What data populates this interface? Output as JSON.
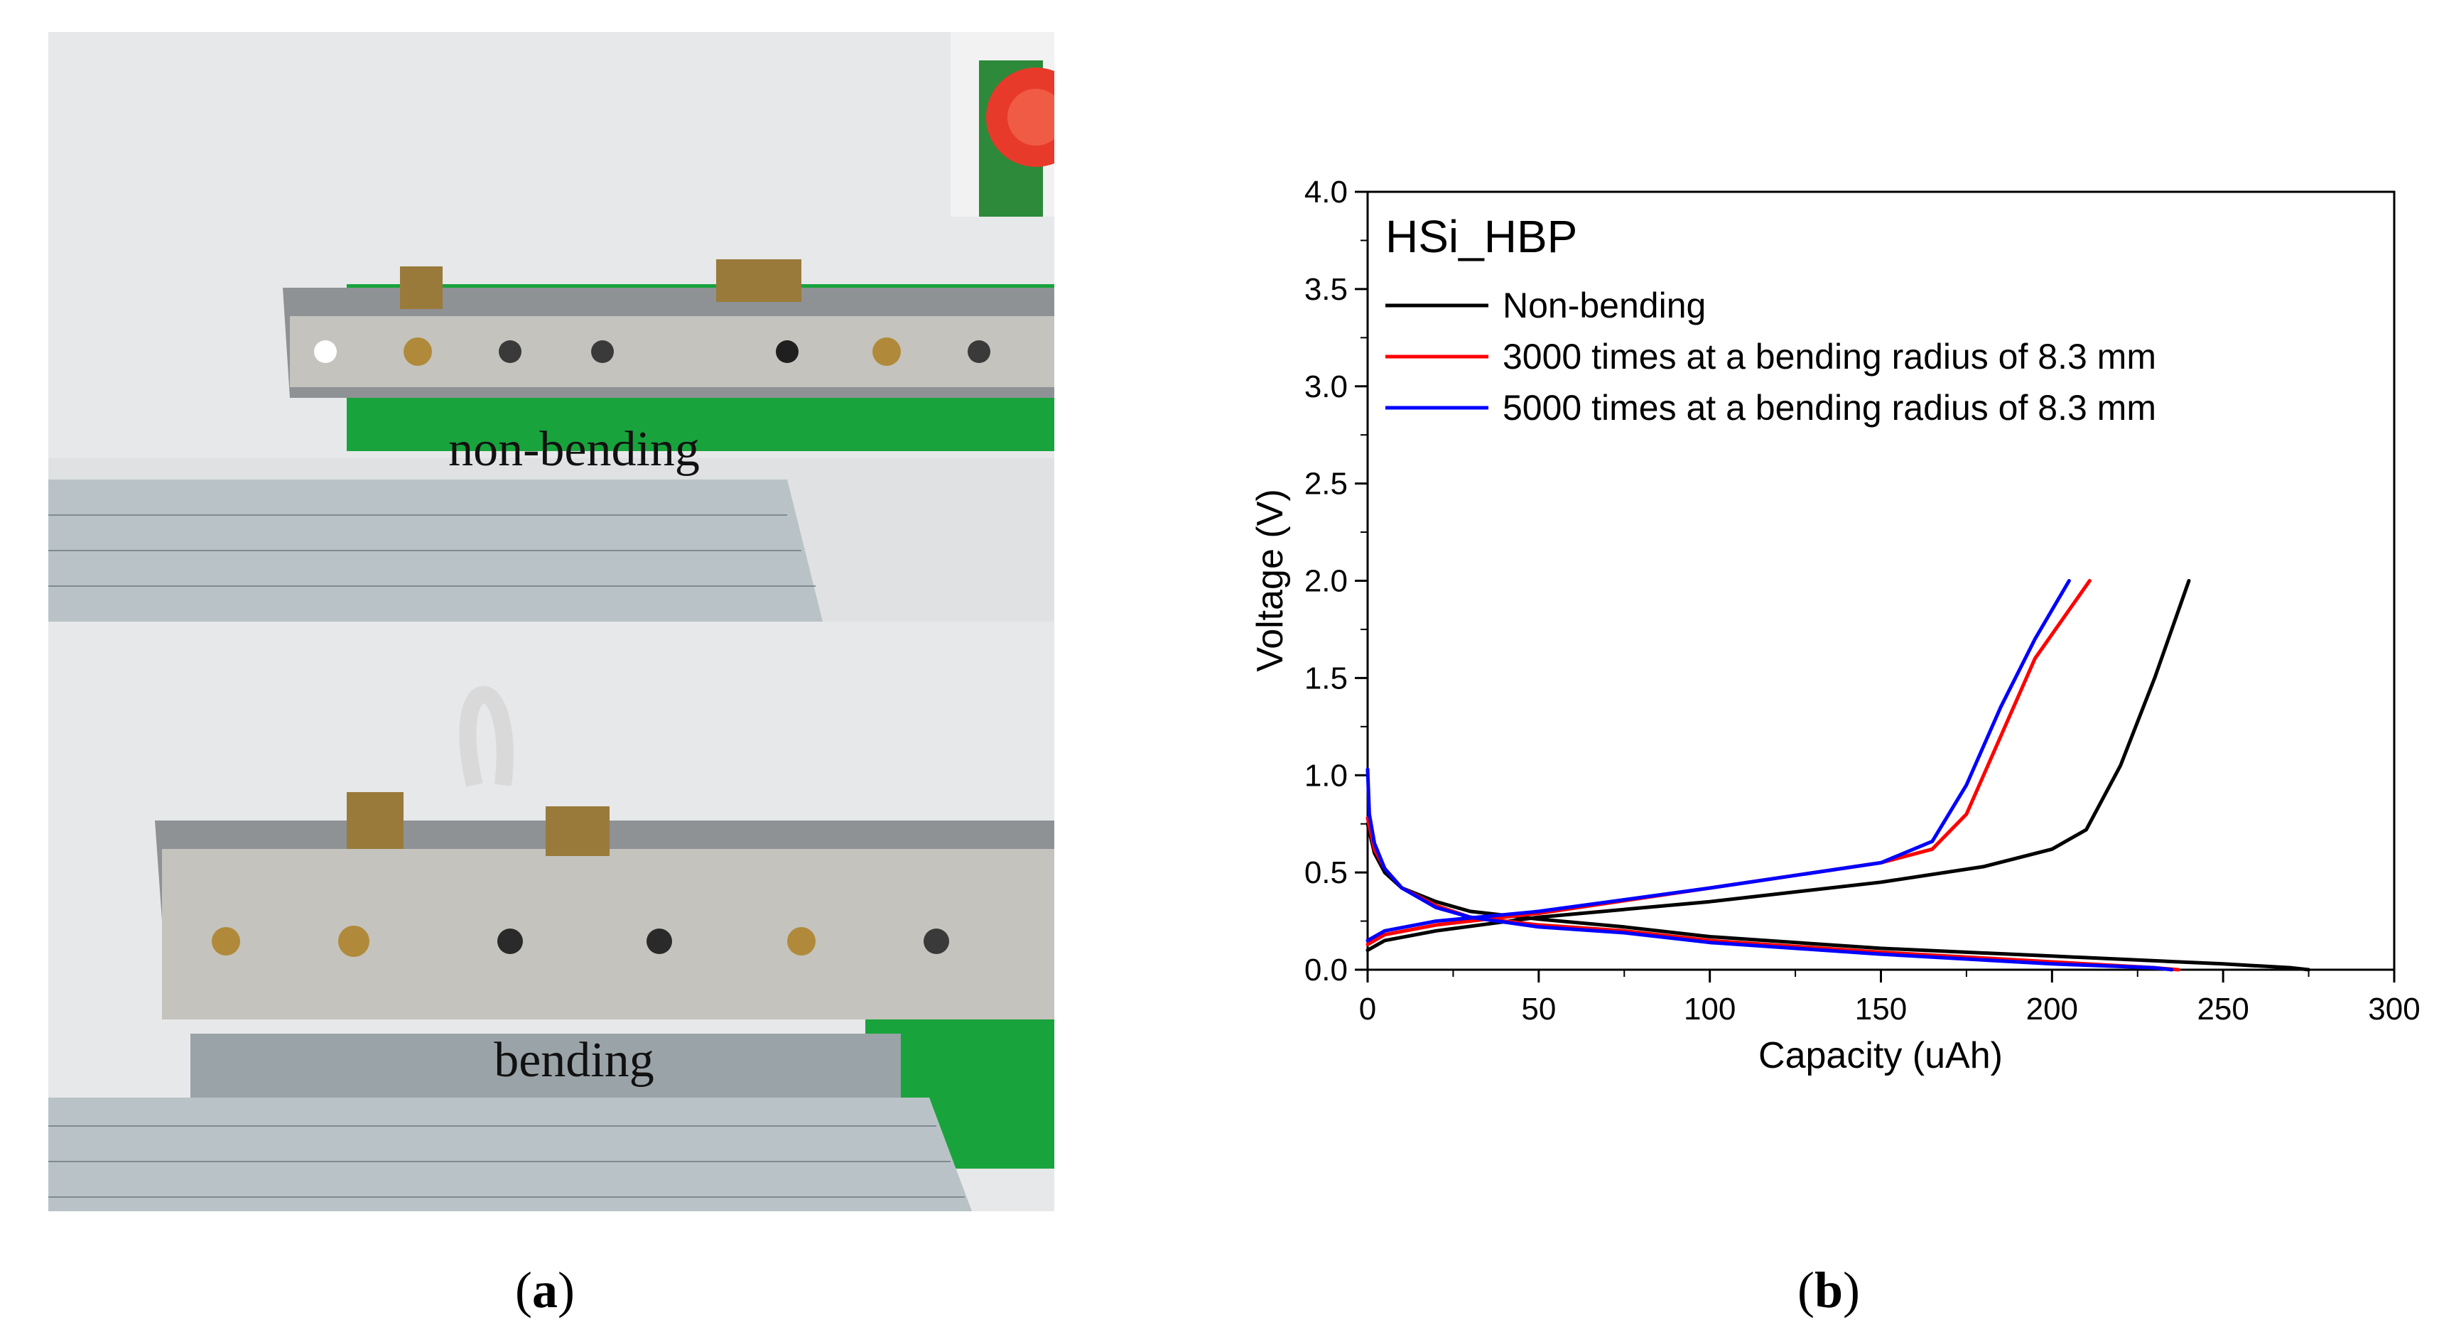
{
  "panel_a": {
    "caption_open": "(",
    "caption_letter": "a",
    "caption_close": ")",
    "top_label": "non-bending",
    "bottom_label": "bending"
  },
  "panel_b": {
    "caption_open": "(",
    "caption_letter": "b",
    "caption_close": ")"
  },
  "chart_data": {
    "type": "line",
    "title": "HSi_HBP",
    "xlabel": "Capacity (uAh)",
    "ylabel": "Voltage (V)",
    "xlim": [
      0,
      300
    ],
    "ylim": [
      0,
      4.0
    ],
    "x_ticks": [
      "0",
      "50",
      "100",
      "150",
      "200",
      "250",
      "300"
    ],
    "y_ticks": [
      "0.0",
      "0.5",
      "1.0",
      "1.5",
      "2.0",
      "2.5",
      "3.0",
      "3.5",
      "4.0"
    ],
    "grid": false,
    "legend_position": "top-left",
    "series": [
      {
        "name": "Non-bending",
        "color": "#000000",
        "discharge": [
          [
            0,
            0.75
          ],
          [
            2,
            0.6
          ],
          [
            5,
            0.5
          ],
          [
            10,
            0.42
          ],
          [
            20,
            0.35
          ],
          [
            30,
            0.3
          ],
          [
            50,
            0.26
          ],
          [
            75,
            0.22
          ],
          [
            100,
            0.17
          ],
          [
            150,
            0.11
          ],
          [
            200,
            0.07
          ],
          [
            250,
            0.03
          ],
          [
            270,
            0.01
          ],
          [
            275,
            0.0
          ]
        ],
        "charge": [
          [
            0,
            0.1
          ],
          [
            5,
            0.15
          ],
          [
            20,
            0.2
          ],
          [
            50,
            0.27
          ],
          [
            100,
            0.35
          ],
          [
            150,
            0.45
          ],
          [
            180,
            0.53
          ],
          [
            200,
            0.62
          ],
          [
            210,
            0.72
          ],
          [
            220,
            1.05
          ],
          [
            230,
            1.5
          ],
          [
            240,
            2.0
          ]
        ]
      },
      {
        "name": "3000 times at a bending radius of 8.3 mm",
        "color": "#ff0000",
        "discharge": [
          [
            0,
            0.78
          ],
          [
            2,
            0.62
          ],
          [
            5,
            0.52
          ],
          [
            10,
            0.42
          ],
          [
            20,
            0.33
          ],
          [
            30,
            0.27
          ],
          [
            50,
            0.23
          ],
          [
            75,
            0.2
          ],
          [
            100,
            0.15
          ],
          [
            150,
            0.09
          ],
          [
            200,
            0.04
          ],
          [
            230,
            0.01
          ],
          [
            237,
            0.0
          ]
        ],
        "charge": [
          [
            0,
            0.13
          ],
          [
            5,
            0.18
          ],
          [
            20,
            0.23
          ],
          [
            50,
            0.29
          ],
          [
            100,
            0.42
          ],
          [
            150,
            0.55
          ],
          [
            165,
            0.62
          ],
          [
            175,
            0.8
          ],
          [
            185,
            1.2
          ],
          [
            195,
            1.6
          ],
          [
            211,
            2.0
          ]
        ]
      },
      {
        "name": "5000 times at a bending radius of 8.3 mm",
        "color": "#0000ff",
        "discharge": [
          [
            0,
            1.03
          ],
          [
            0.5,
            0.8
          ],
          [
            2,
            0.65
          ],
          [
            5,
            0.52
          ],
          [
            10,
            0.42
          ],
          [
            20,
            0.32
          ],
          [
            30,
            0.27
          ],
          [
            50,
            0.22
          ],
          [
            75,
            0.19
          ],
          [
            100,
            0.14
          ],
          [
            150,
            0.08
          ],
          [
            200,
            0.03
          ],
          [
            230,
            0.01
          ],
          [
            235,
            0.0
          ]
        ],
        "charge": [
          [
            0,
            0.15
          ],
          [
            5,
            0.2
          ],
          [
            20,
            0.25
          ],
          [
            50,
            0.3
          ],
          [
            100,
            0.42
          ],
          [
            150,
            0.55
          ],
          [
            165,
            0.66
          ],
          [
            175,
            0.95
          ],
          [
            185,
            1.35
          ],
          [
            195,
            1.7
          ],
          [
            205,
            2.0
          ]
        ]
      }
    ]
  }
}
